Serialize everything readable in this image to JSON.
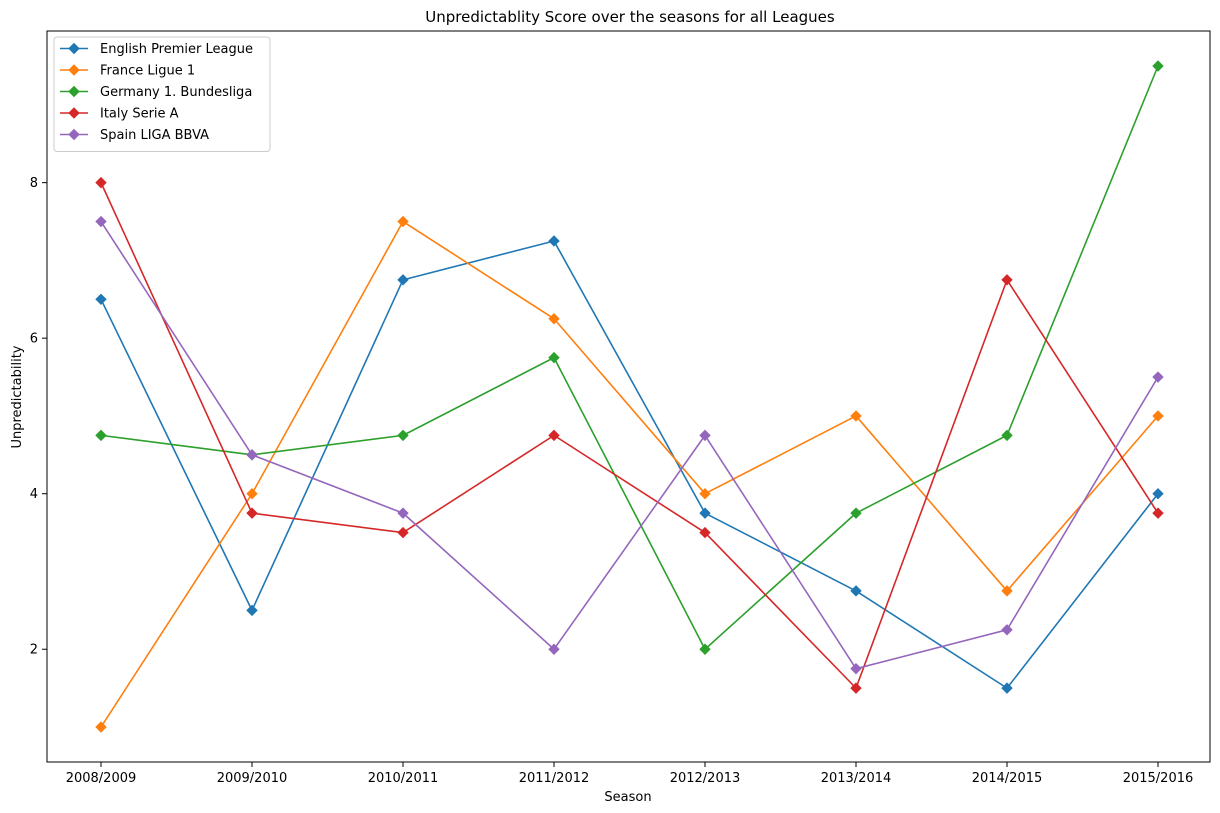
{
  "chart_data": {
    "type": "line",
    "title": "Unpredictablity Score over the seasons for all Leagues",
    "xlabel": "Season",
    "ylabel": "Unpredictability",
    "categories": [
      "2008/2009",
      "2009/2010",
      "2010/2011",
      "2011/2012",
      "2012/2013",
      "2013/2014",
      "2014/2015",
      "2015/2016"
    ],
    "ylim": [
      0.55,
      9.95
    ],
    "yticks": [
      2,
      4,
      6,
      8
    ],
    "grid": false,
    "legend_position": "top-left",
    "marker": "diamond",
    "series": [
      {
        "name": "English Premier League",
        "color": "#1f77b4",
        "values": [
          6.5,
          2.5,
          6.75,
          7.25,
          3.75,
          2.75,
          1.5,
          4.0
        ]
      },
      {
        "name": "France Ligue 1",
        "color": "#ff7f0e",
        "values": [
          1.0,
          4.0,
          7.5,
          6.25,
          4.0,
          5.0,
          2.75,
          5.0
        ]
      },
      {
        "name": "Germany 1. Bundesliga",
        "color": "#2ca02c",
        "values": [
          4.75,
          4.5,
          4.75,
          5.75,
          2.0,
          3.75,
          4.75,
          9.5
        ]
      },
      {
        "name": "Italy Serie A",
        "color": "#d62728",
        "values": [
          8.0,
          3.75,
          3.5,
          4.75,
          3.5,
          1.5,
          6.75,
          3.75
        ]
      },
      {
        "name": "Spain LIGA BBVA",
        "color": "#9467bd",
        "values": [
          7.5,
          4.5,
          3.75,
          2.0,
          4.75,
          1.75,
          2.25,
          5.5
        ]
      }
    ]
  }
}
